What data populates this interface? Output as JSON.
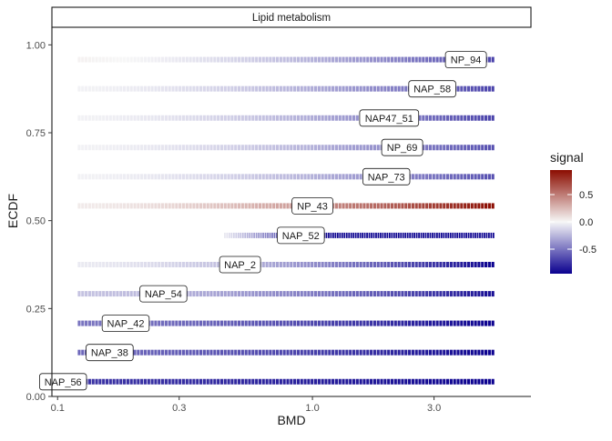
{
  "chart_data": {
    "type": "line",
    "facet_title": "Lipid metabolism",
    "xlabel": "BMD",
    "ylabel": "ECDF",
    "x_scale": "log10",
    "xlim": [
      0.095,
      7.2
    ],
    "ylim": [
      0,
      1.05
    ],
    "x_ticks": [
      {
        "value": 0.1,
        "label": "0.1"
      },
      {
        "value": 0.3,
        "label": "0.3"
      },
      {
        "value": 1.0,
        "label": "1.0"
      },
      {
        "value": 3.0,
        "label": "3.0"
      }
    ],
    "y_ticks": [
      {
        "value": 0.0,
        "label": "0.00"
      },
      {
        "value": 0.25,
        "label": "0.25"
      },
      {
        "value": 0.5,
        "label": "0.50"
      },
      {
        "value": 0.75,
        "label": "0.75"
      },
      {
        "value": 1.0,
        "label": "1.00"
      }
    ],
    "legend": {
      "title": "signal",
      "placement": "right",
      "ticks": [
        {
          "value": 0.5,
          "label": "0.5"
        },
        {
          "value": 0.0,
          "label": "0.0"
        },
        {
          "value": -0.5,
          "label": "-0.5"
        }
      ],
      "range": [
        -0.95,
        0.95
      ],
      "colors": {
        "low": "#0a008f",
        "mid": "#f7f7f7",
        "high": "#8b0c00"
      }
    },
    "series": [
      {
        "name": "NAP_56",
        "ecdf": 0.042,
        "label_bmd": 0.105,
        "x_start": 0.12,
        "x_end": 5.2,
        "signal_start": -0.75,
        "signal_end": -0.95
      },
      {
        "name": "NAP_38",
        "ecdf": 0.125,
        "label_bmd": 0.16,
        "x_start": 0.12,
        "x_end": 5.2,
        "signal_start": -0.55,
        "signal_end": -0.95
      },
      {
        "name": "NAP_42",
        "ecdf": 0.208,
        "label_bmd": 0.185,
        "x_start": 0.12,
        "x_end": 5.2,
        "signal_start": -0.5,
        "signal_end": -0.95
      },
      {
        "name": "NAP_54",
        "ecdf": 0.292,
        "label_bmd": 0.26,
        "x_start": 0.12,
        "x_end": 5.2,
        "signal_start": -0.2,
        "signal_end": -0.9
      },
      {
        "name": "NAP_2",
        "ecdf": 0.375,
        "label_bmd": 0.52,
        "x_start": 0.12,
        "x_end": 5.2,
        "signal_start": -0.05,
        "signal_end": -0.95
      },
      {
        "name": "NAP_52",
        "ecdf": 0.458,
        "label_bmd": 0.9,
        "x_start": 0.45,
        "x_end": 5.2,
        "signal_start": -0.05,
        "signal_end": -0.92,
        "steep": true
      },
      {
        "name": "NP_43",
        "ecdf": 0.542,
        "label_bmd": 1.0,
        "x_start": 0.12,
        "x_end": 5.2,
        "signal_start": 0.05,
        "signal_end": 0.95
      },
      {
        "name": "NAP_73",
        "ecdf": 0.625,
        "label_bmd": 1.95,
        "x_start": 0.12,
        "x_end": 5.2,
        "signal_start": -0.02,
        "signal_end": -0.65
      },
      {
        "name": "NP_69",
        "ecdf": 0.708,
        "label_bmd": 2.25,
        "x_start": 0.12,
        "x_end": 5.2,
        "signal_start": -0.02,
        "signal_end": -0.65
      },
      {
        "name": "NAP47_51",
        "ecdf": 0.792,
        "label_bmd": 2.0,
        "x_start": 0.12,
        "x_end": 5.2,
        "signal_start": -0.02,
        "signal_end": -0.7
      },
      {
        "name": "NAP_58",
        "ecdf": 0.875,
        "label_bmd": 2.95,
        "x_start": 0.12,
        "x_end": 5.2,
        "signal_start": -0.02,
        "signal_end": -0.7
      },
      {
        "name": "NP_94",
        "ecdf": 0.958,
        "label_bmd": 4.0,
        "x_start": 0.12,
        "x_end": 5.2,
        "signal_start": 0.02,
        "signal_end": -0.7
      }
    ]
  }
}
